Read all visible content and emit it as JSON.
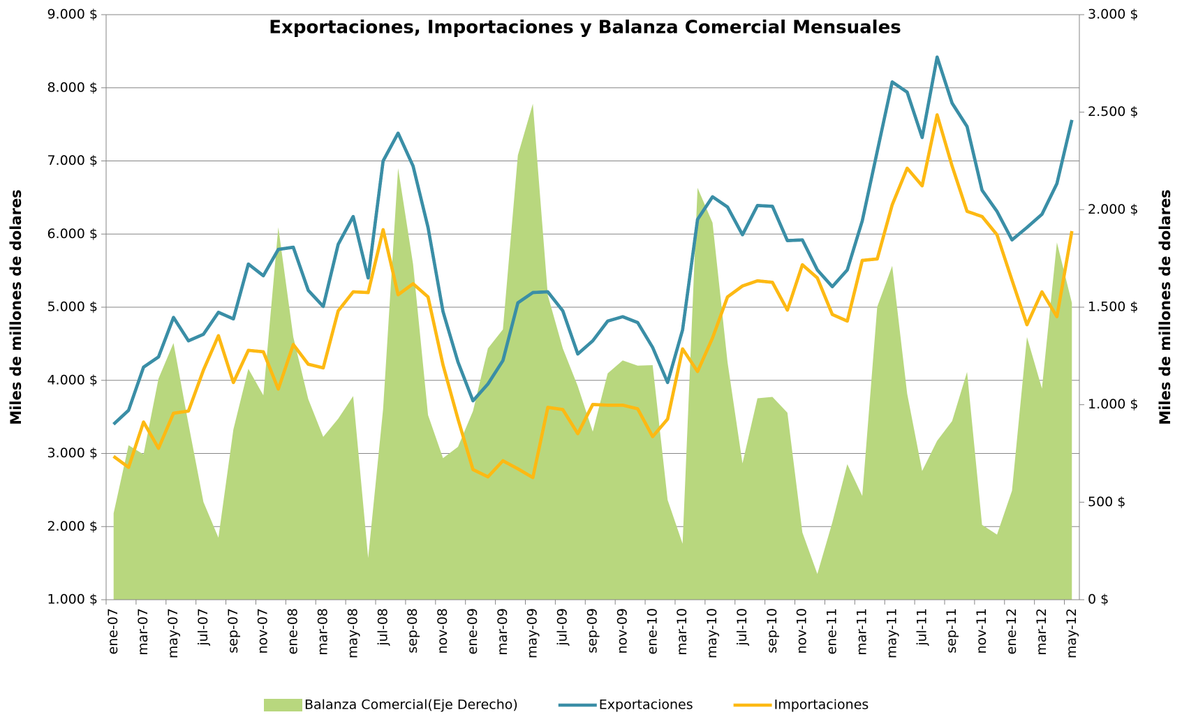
{
  "chart_data": {
    "type": "line",
    "title": "Exportaciones, Importaciones y Balanza Comercial Mensuales",
    "y_label": "Miles de millones de dolares",
    "y2_label": "Miles de millones de dolares",
    "categories": [
      "ene-07",
      null,
      "mar-07",
      null,
      "may-07",
      null,
      "jul-07",
      null,
      "sep-07",
      null,
      "nov-07",
      null,
      "ene-08",
      null,
      "mar-08",
      null,
      "may-08",
      null,
      "jul-08",
      null,
      "sep-08",
      null,
      "nov-08",
      null,
      "ene-09",
      null,
      "mar-09",
      null,
      "may-09",
      null,
      "jul-09",
      null,
      "sep-09",
      null,
      "nov-09",
      null,
      "ene-10",
      null,
      "mar-10",
      null,
      "may-10",
      null,
      "jul-10",
      null,
      "sep-10",
      null,
      "nov-10",
      null,
      "ene-11",
      null,
      "mar-11",
      null,
      "may-11",
      null,
      "jul-11",
      null,
      "sep-11",
      null,
      "nov-11",
      null,
      "ene-12",
      null,
      "mar-12",
      null,
      "may-12"
    ],
    "series": [
      {
        "name": "Balanza Comercial(Eje Derecho)",
        "type": "area",
        "axis": "y2",
        "color": "#b8d77e",
        "values": [
          443,
          792,
          745,
          1134,
          1316,
          901,
          501,
          318,
          873,
          1184,
          1048,
          1910,
          1347,
          1029,
          835,
          928,
          1044,
          214,
          978,
          2213,
          1720,
          947,
          726,
          784,
          967,
          1289,
          1386,
          2279,
          2543,
          1561,
          1289,
          1095,
          862,
          1161,
          1227,
          1200,
          1203,
          512,
          287,
          2112,
          1933,
          1219,
          699,
          1033,
          1040,
          959,
          345,
          132,
          396,
          695,
          532,
          1502,
          1712,
          1056,
          660,
          815,
          916,
          1168,
          384,
          334,
          559,
          1347,
          1083,
          1832,
          1522
        ]
      },
      {
        "name": "Exportaciones",
        "type": "line",
        "color": "#3a8ea6",
        "values": [
          3400,
          3590,
          4180,
          4320,
          4860,
          4540,
          4630,
          4930,
          4840,
          5590,
          5430,
          5790,
          5820,
          5230,
          5010,
          5860,
          6240,
          5400,
          7000,
          7380,
          6930,
          6090,
          4940,
          4250,
          3720,
          3950,
          4270,
          5060,
          5200,
          5210,
          4950,
          4360,
          4540,
          4810,
          4870,
          4790,
          4450,
          3970,
          4690,
          6200,
          6510,
          6370,
          5990,
          6390,
          6380,
          5910,
          5920,
          5510,
          5280,
          5510,
          6180,
          7130,
          8080,
          7940,
          7320,
          8420,
          7790,
          7470,
          6600,
          6310,
          5920,
          6090,
          6270,
          6690,
          7560
        ]
      },
      {
        "name": "Importaciones",
        "type": "line",
        "color": "#fdb913",
        "values": [
          2960,
          2810,
          3430,
          3070,
          3550,
          3580,
          4140,
          4610,
          3970,
          4410,
          4390,
          3880,
          4490,
          4220,
          4170,
          4950,
          5210,
          5200,
          6060,
          5170,
          5320,
          5140,
          4210,
          3470,
          2780,
          2680,
          2900,
          2790,
          2670,
          3630,
          3600,
          3270,
          3670,
          3660,
          3660,
          3610,
          3230,
          3470,
          4430,
          4120,
          4580,
          5140,
          5290,
          5360,
          5340,
          4960,
          5580,
          5400,
          4900,
          4810,
          5640,
          5660,
          6400,
          6900,
          6660,
          7630,
          6930,
          6310,
          6240,
          5990,
          5370,
          4760,
          5210,
          4870,
          6040
        ]
      }
    ],
    "ylim": [
      1000,
      9000
    ],
    "yticks": [
      {
        "value": 1000,
        "label": "1.000 $"
      },
      {
        "value": 2000,
        "label": "2.000 $"
      },
      {
        "value": 3000,
        "label": "3.000 $"
      },
      {
        "value": 4000,
        "label": "4.000 $"
      },
      {
        "value": 5000,
        "label": "5.000 $"
      },
      {
        "value": 6000,
        "label": "6.000 $"
      },
      {
        "value": 7000,
        "label": "7.000 $"
      },
      {
        "value": 8000,
        "label": "8.000 $"
      },
      {
        "value": 9000,
        "label": "9.000 $"
      }
    ],
    "y2lim": [
      0,
      3000
    ],
    "y2ticks": [
      {
        "value": 0,
        "label": "0 $"
      },
      {
        "value": 500,
        "label": "500 $"
      },
      {
        "value": 1000,
        "label": "1.000 $"
      },
      {
        "value": 1500,
        "label": "1.500 $"
      },
      {
        "value": 2000,
        "label": "2.000 $"
      },
      {
        "value": 2500,
        "label": "2.500 $"
      },
      {
        "value": 3000,
        "label": "3.000 $"
      }
    ],
    "grid": true,
    "legend": "bottom"
  }
}
